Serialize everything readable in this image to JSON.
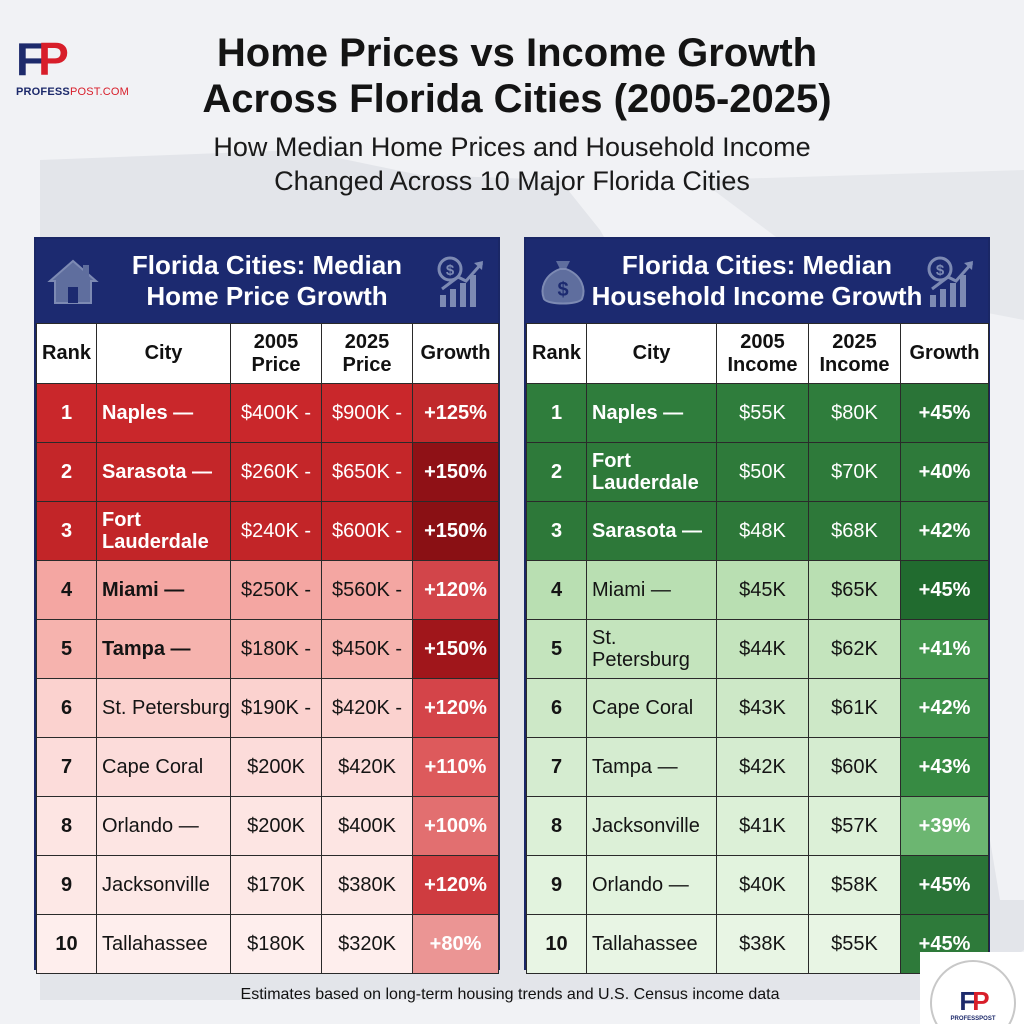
{
  "header": {
    "logo_mark_f": "F",
    "logo_mark_p": "P",
    "logo_site_main": "PROFESS",
    "logo_site_post": "POST.COM",
    "title_line1": "Home Prices vs Income Growth",
    "title_line2": "Across Florida Cities (2005-2025)",
    "subtitle_line1": "How Median Home Prices and Household Income",
    "subtitle_line2": "Changed Across 10 Major Florida Cities"
  },
  "home_table": {
    "title_line1": "Florida Cities: Median",
    "title_line2": "Home Price Growth",
    "icon_left": "house-icon",
    "icon_right": "growth-chart-icon",
    "headers": [
      "Rank",
      "City",
      "2005 Price",
      "2025 Price",
      "Growth"
    ],
    "rows": [
      {
        "rank": "1",
        "city": "Naples —",
        "v2005": "$400K -",
        "v2025": "$900K -",
        "growth": "+125%",
        "bg": "#c9272b",
        "gbg": "#c0292c",
        "text": "#ffffff",
        "bold": true
      },
      {
        "rank": "2",
        "city": "Sarasota —",
        "v2005": "$260K -",
        "v2025": "$650K -",
        "growth": "+150%",
        "bg": "#c42629",
        "gbg": "#8f1116",
        "text": "#ffffff",
        "bold": true
      },
      {
        "rank": "3",
        "city": "Fort Lauderdale",
        "v2005": "$240K -",
        "v2025": "$600K -",
        "growth": "+150%",
        "bg": "#c22528",
        "gbg": "#8a1014",
        "text": "#ffffff",
        "bold": true
      },
      {
        "rank": "4",
        "city": "Miami —",
        "v2005": "$250K -",
        "v2025": "$560K -",
        "growth": "+120%",
        "bg": "#f4a6a2",
        "gbg": "#d2454a",
        "text": "#141414",
        "bold": true
      },
      {
        "rank": "5",
        "city": "Tampa —",
        "v2005": "$180K -",
        "v2025": "$450K -",
        "growth": "+150%",
        "bg": "#f6b3ae",
        "gbg": "#a0161b",
        "text": "#141414",
        "bold": true
      },
      {
        "rank": "6",
        "city": "St. Petersburg",
        "v2005": "$190K -",
        "v2025": "$420K -",
        "growth": "+120%",
        "bg": "#fbd2cf",
        "gbg": "#d44449",
        "text": "#141414",
        "bold": false
      },
      {
        "rank": "7",
        "city": "Cape Coral",
        "v2005": "$200K",
        "v2025": "$420K",
        "growth": "+110%",
        "bg": "#fcdcda",
        "gbg": "#dd5a5c",
        "text": "#141414",
        "bold": false
      },
      {
        "rank": "8",
        "city": "Orlando —",
        "v2005": "$200K",
        "v2025": "$400K",
        "growth": "+100%",
        "bg": "#fde5e3",
        "gbg": "#e26f70",
        "text": "#141414",
        "bold": false
      },
      {
        "rank": "9",
        "city": "Jacksonville",
        "v2005": "$170K",
        "v2025": "$380K",
        "growth": "+120%",
        "bg": "#fde8e6",
        "gbg": "#cf3c40",
        "text": "#141414",
        "bold": false
      },
      {
        "rank": "10",
        "city": "Tallahassee",
        "v2005": "$180K",
        "v2025": "$320K",
        "growth": "+80%",
        "bg": "#feeeed",
        "gbg": "#eb9594",
        "text": "#141414",
        "bold": false
      }
    ]
  },
  "income_table": {
    "title_line1": "Florida Cities: Median",
    "title_line2": "Household Income Growth",
    "icon_left": "money-bag-icon",
    "icon_right": "growth-chart-icon",
    "headers": [
      "Rank",
      "City",
      "2005 Income",
      "2025 Income",
      "Growth"
    ],
    "rows": [
      {
        "rank": "1",
        "city": "Naples —",
        "v2005": "$55K",
        "v2025": "$80K",
        "growth": "+45%",
        "bg": "#2f7d3c",
        "gbg": "#2a7437",
        "text": "#ffffff",
        "bold": true
      },
      {
        "rank": "2",
        "city": "Fort Lauderdale",
        "v2005": "$50K",
        "v2025": "$70K",
        "growth": "+40%",
        "bg": "#2e7a3a",
        "gbg": "#2e7a3a",
        "text": "#ffffff",
        "bold": true
      },
      {
        "rank": "3",
        "city": "Sarasota —",
        "v2005": "$48K",
        "v2025": "$68K",
        "growth": "+42%",
        "bg": "#2d7839",
        "gbg": "#2f7c3b",
        "text": "#ffffff",
        "bold": true
      },
      {
        "rank": "4",
        "city": "Miami —",
        "v2005": "$45K",
        "v2025": "$65K",
        "growth": "+45%",
        "bg": "#b9dfb2",
        "gbg": "#216b2f",
        "text": "#141414",
        "bold": false
      },
      {
        "rank": "5",
        "city": "St. Petersburg",
        "v2005": "$44K",
        "v2025": "$62K",
        "growth": "+41%",
        "bg": "#c4e4bd",
        "gbg": "#43964e",
        "text": "#141414",
        "bold": false
      },
      {
        "rank": "6",
        "city": "Cape Coral",
        "v2005": "$43K",
        "v2025": "$61K",
        "growth": "+42%",
        "bg": "#cde8c7",
        "gbg": "#3e914a",
        "text": "#141414",
        "bold": false
      },
      {
        "rank": "7",
        "city": "Tampa —",
        "v2005": "$42K",
        "v2025": "$60K",
        "growth": "+43%",
        "bg": "#d5ecd0",
        "gbg": "#378b43",
        "text": "#141414",
        "bold": false
      },
      {
        "rank": "8",
        "city": "Jacksonville",
        "v2005": "$41K",
        "v2025": "$57K",
        "growth": "+39%",
        "bg": "#dcf0d7",
        "gbg": "#6cb671",
        "text": "#141414",
        "bold": false
      },
      {
        "rank": "9",
        "city": "Orlando —",
        "v2005": "$40K",
        "v2025": "$58K",
        "growth": "+45%",
        "bg": "#e2f3de",
        "gbg": "#2a7437",
        "text": "#141414",
        "bold": false
      },
      {
        "rank": "10",
        "city": "Tallahassee",
        "v2005": "$38K",
        "v2025": "$55K",
        "growth": "+45%",
        "bg": "#e8f5e4",
        "gbg": "#2e7a3a",
        "text": "#141414",
        "bold": false
      }
    ]
  },
  "footnote": "Estimates based on long-term housing trends and U.S. Census income data",
  "badge": {
    "mark_f": "F",
    "mark_p": "P",
    "site": "PROFESSPOST"
  },
  "colors": {
    "navy": "#1c2a70",
    "brand_red": "#d81e2a",
    "background": "#f1f2f5"
  }
}
